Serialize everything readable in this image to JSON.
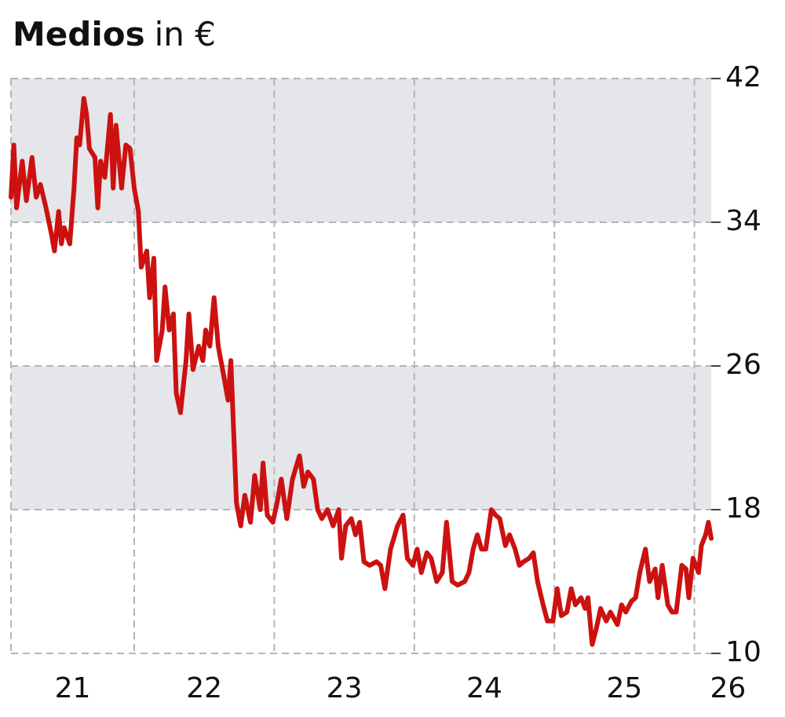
{
  "chart_data": {
    "type": "line",
    "title": "Medios",
    "title_unit": "in €",
    "x": [
      21.12,
      21.14,
      21.16,
      21.2,
      21.23,
      21.27,
      21.3,
      21.33,
      21.37,
      21.41,
      21.43,
      21.46,
      21.48,
      21.5,
      21.54,
      21.57,
      21.59,
      21.61,
      21.64,
      21.66,
      21.68,
      21.72,
      21.74,
      21.76,
      21.79,
      21.83,
      21.85,
      21.87,
      21.91,
      21.94,
      21.97,
      22.0,
      22.03,
      22.05,
      22.09,
      22.11,
      22.14,
      22.16,
      22.2,
      22.22,
      22.25,
      22.28,
      22.3,
      22.33,
      22.37,
      22.39,
      22.42,
      22.46,
      22.49,
      22.51,
      22.54,
      22.57,
      22.6,
      22.64,
      22.67,
      22.69,
      22.73,
      22.76,
      22.79,
      22.83,
      22.86,
      22.9,
      22.92,
      22.95,
      22.99,
      23.02,
      23.05,
      23.09,
      23.13,
      23.18,
      23.21,
      23.24,
      23.28,
      23.31,
      23.34,
      23.38,
      23.42,
      23.46,
      23.48,
      23.51,
      23.55,
      23.58,
      23.61,
      23.64,
      23.68,
      23.73,
      23.76,
      23.79,
      23.83,
      23.88,
      23.92,
      23.95,
      23.99,
      24.02,
      24.05,
      24.09,
      24.12,
      24.16,
      24.2,
      24.23,
      24.27,
      24.31,
      24.36,
      24.39,
      24.42,
      24.45,
      24.48,
      24.51,
      24.55,
      24.58,
      24.61,
      24.65,
      24.68,
      24.72,
      24.75,
      24.78,
      24.82,
      24.85,
      24.88,
      24.92,
      24.95,
      24.99,
      25.02,
      25.05,
      25.09,
      25.12,
      25.15,
      25.19,
      25.22,
      25.24,
      25.27,
      25.3,
      25.33,
      25.37,
      25.4,
      25.45,
      25.48,
      25.51,
      25.55,
      25.58,
      25.61,
      25.65,
      25.68,
      25.72,
      25.74,
      25.77,
      25.81,
      25.84,
      25.87,
      25.91,
      25.94,
      25.96,
      25.99,
      26.03,
      26.05,
      26.08,
      26.1,
      26.12
    ],
    "series": [
      {
        "color": "#cc1111",
        "values": [
          35.4,
          38.3,
          34.8,
          37.4,
          35.2,
          37.6,
          35.4,
          36.1,
          34.8,
          33.3,
          32.4,
          34.6,
          32.8,
          33.7,
          32.8,
          35.9,
          38.7,
          38.3,
          40.9,
          40.0,
          38.1,
          37.6,
          34.8,
          37.4,
          36.5,
          40.0,
          35.9,
          39.4,
          35.9,
          38.3,
          38.1,
          35.9,
          34.6,
          31.5,
          32.4,
          29.8,
          32.0,
          26.3,
          28.0,
          30.4,
          28.0,
          28.9,
          24.5,
          23.4,
          26.3,
          28.9,
          25.8,
          27.1,
          26.3,
          28.0,
          27.1,
          29.8,
          27.1,
          25.4,
          24.1,
          26.3,
          18.4,
          17.1,
          18.8,
          17.3,
          19.9,
          18.0,
          20.6,
          17.7,
          17.3,
          18.4,
          19.7,
          17.5,
          19.7,
          21.0,
          19.3,
          20.1,
          19.7,
          18.0,
          17.5,
          18.0,
          17.1,
          18.0,
          15.3,
          17.1,
          17.5,
          16.6,
          17.3,
          15.1,
          14.9,
          15.1,
          14.9,
          13.6,
          15.8,
          17.1,
          17.7,
          15.3,
          14.9,
          15.8,
          14.5,
          15.6,
          15.3,
          14.0,
          14.5,
          17.3,
          14.0,
          13.8,
          14.0,
          14.5,
          15.8,
          16.6,
          15.8,
          15.8,
          18.0,
          17.7,
          17.5,
          16.0,
          16.6,
          15.8,
          14.9,
          15.1,
          15.3,
          15.6,
          14.0,
          12.7,
          11.8,
          11.8,
          13.6,
          12.1,
          12.3,
          13.6,
          12.7,
          13.1,
          12.5,
          13.1,
          10.5,
          11.4,
          12.5,
          11.8,
          12.3,
          11.6,
          12.7,
          12.3,
          12.9,
          13.1,
          14.5,
          15.8,
          14.0,
          14.7,
          13.1,
          14.9,
          12.7,
          12.3,
          12.3,
          14.9,
          14.7,
          13.1,
          15.3,
          14.5,
          16.0,
          16.6,
          17.3,
          16.4
        ]
      }
    ],
    "xlim": [
      21.12,
      26.12
    ],
    "xticks": [
      {
        "value": 21.56,
        "label": "21"
      },
      {
        "value": 22.5,
        "label": "22"
      },
      {
        "value": 23.5,
        "label": "23"
      },
      {
        "value": 24.5,
        "label": "24"
      },
      {
        "value": 25.5,
        "label": "25"
      },
      {
        "value": 26.24,
        "label": "26"
      }
    ],
    "xgrid": [
      22,
      23,
      24,
      25,
      26
    ],
    "ylim": [
      10,
      42
    ],
    "yticks": [
      10,
      18,
      26,
      34,
      42
    ],
    "bands": [
      [
        34,
        42
      ],
      [
        18,
        26
      ]
    ],
    "band_color": "#e4e6ea",
    "grid": true
  }
}
